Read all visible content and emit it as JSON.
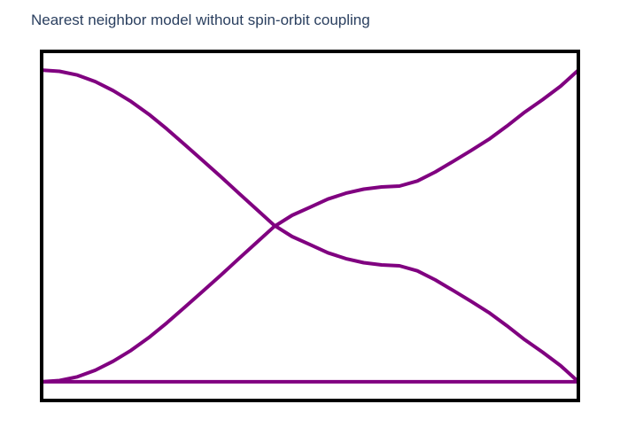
{
  "chart_data": {
    "type": "line",
    "title": "Nearest neighbor model without spin-orbit coupling",
    "xlabel": "",
    "ylabel": "",
    "xlim": [
      0,
      1
    ],
    "ylim": [
      -0.06,
      1.06
    ],
    "grid": false,
    "line_color": "#800080",
    "frame_color": "#000000",
    "series": [
      {
        "x": [
          0,
          0.0333,
          0.0667,
          0.1,
          0.1333,
          0.1667,
          0.2,
          0.2333,
          0.2667,
          0.3,
          0.3333,
          0.3667,
          0.4,
          0.4333,
          0.4667,
          0.5,
          0.5333,
          0.5667,
          0.6,
          0.6333,
          0.6667,
          0.7,
          0.7333,
          0.7667,
          0.8,
          0.8333,
          0.8667,
          0.9,
          0.9333,
          0.9667,
          1.0
        ],
        "values": [
          1.0,
          0.996,
          0.984,
          0.963,
          0.934,
          0.899,
          0.858,
          0.811,
          0.761,
          0.71,
          0.659,
          0.606,
          0.554,
          0.502,
          0.466,
          0.44,
          0.414,
          0.395,
          0.382,
          0.375,
          0.372,
          0.356,
          0.327,
          0.293,
          0.258,
          0.222,
          0.18,
          0.135,
          0.095,
          0.052,
          0.0
        ]
      },
      {
        "x": [
          0,
          0.0333,
          0.0667,
          0.1,
          0.1333,
          0.1667,
          0.2,
          0.2333,
          0.2667,
          0.3,
          0.3333,
          0.3667,
          0.4,
          0.4333,
          0.4667,
          0.5,
          0.5333,
          0.5667,
          0.6,
          0.6333,
          0.6667,
          0.7,
          0.7333,
          0.7667,
          0.8,
          0.8333,
          0.8667,
          0.9,
          0.9333,
          0.9667,
          1.0
        ],
        "values": [
          0.0,
          0.004,
          0.016,
          0.037,
          0.066,
          0.101,
          0.142,
          0.189,
          0.239,
          0.29,
          0.341,
          0.394,
          0.446,
          0.498,
          0.534,
          0.56,
          0.586,
          0.605,
          0.618,
          0.625,
          0.628,
          0.644,
          0.673,
          0.707,
          0.742,
          0.778,
          0.82,
          0.865,
          0.905,
          0.948,
          1.0
        ]
      },
      {
        "x": [
          0,
          1
        ],
        "values": [
          0.0,
          0.0
        ]
      }
    ]
  }
}
